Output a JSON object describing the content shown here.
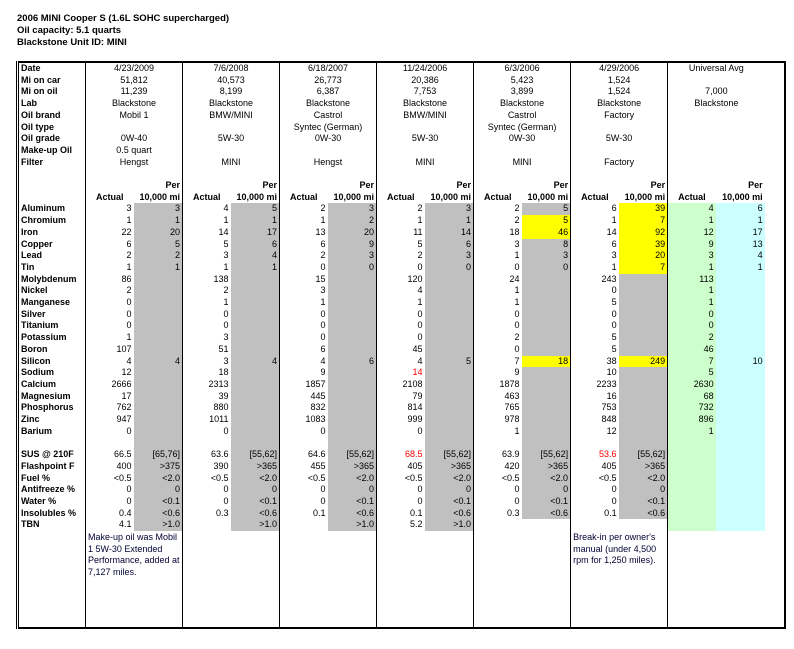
{
  "title": {
    "line1": "2006 MINI Cooper S (1.6L SOHC supercharged)",
    "line2": "Oil capacity:  5.1 quarts",
    "line3": "Blackstone Unit ID:  MINI"
  },
  "info_labels": [
    "Date",
    "Mi on car",
    "Mi on oil",
    "Lab",
    "Oil brand",
    "Oil type",
    "Oil grade",
    "Make-up Oil",
    "Filter"
  ],
  "header_labels": {
    "per": "Per",
    "actual": "Actual",
    "per_10k": "10,000 mi"
  },
  "element_labels": [
    "Aluminum",
    "Chromium",
    "Iron",
    "Copper",
    "Lead",
    "Tin",
    "Molybdenum",
    "Nickel",
    "Manganese",
    "Silver",
    "Titanium",
    "Potassium",
    "Boron",
    "Silicon",
    "Sodium",
    "Calcium",
    "Magnesium",
    "Phosphorus",
    "Zinc",
    "Barium"
  ],
  "property_labels": [
    "SUS @ 210F",
    "Flashpoint F",
    "Fuel %",
    "Antifreeze %",
    "Water %",
    "Insolubles %",
    "TBN"
  ],
  "colors": {
    "per_shade": "#c0c0c0",
    "over_limit": "#ffff00",
    "universal_actual": "#ccffcc",
    "universal_per": "#ccffff",
    "flag_text": "#ff0000"
  },
  "columns": [
    {
      "info": [
        "4/23/2009",
        "51,812",
        "11,239",
        "Blackstone",
        "Mobil 1",
        "",
        "0W-40",
        "0.5 quart",
        "Hengst"
      ],
      "actual": [
        "3",
        "1",
        "22",
        "6",
        "2",
        "1",
        "86",
        "2",
        "0",
        "0",
        "0",
        "1",
        "107",
        "4",
        "12",
        "2666",
        "17",
        "762",
        "947",
        "0"
      ],
      "per": [
        "3",
        "1",
        "20",
        "5",
        "2",
        "1",
        "",
        "",
        "",
        "",
        "",
        "",
        "",
        "4",
        "",
        "",
        "",
        "",
        "",
        ""
      ],
      "prop_actual": [
        "66.5",
        "400",
        "<0.5",
        "0",
        "0",
        "0.4",
        "4.1"
      ],
      "prop_limit": [
        "[65,76]",
        ">375",
        "<2.0",
        "0",
        "<0.1",
        "<0.6",
        ">1.0"
      ],
      "highlight_per": [],
      "flag_actual": [],
      "flag_prop": [],
      "note": "Make-up oil was Mobil 1 5W-30 Extended Performance, added at 7,127 miles."
    },
    {
      "info": [
        "7/6/2008",
        "40,573",
        "8,199",
        "Blackstone",
        "BMW/MINI",
        "",
        "5W-30",
        "",
        "MINI"
      ],
      "actual": [
        "4",
        "1",
        "14",
        "5",
        "3",
        "1",
        "138",
        "2",
        "1",
        "0",
        "0",
        "3",
        "51",
        "3",
        "18",
        "2313",
        "39",
        "880",
        "1011",
        "0"
      ],
      "per": [
        "5",
        "1",
        "17",
        "6",
        "4",
        "1",
        "",
        "",
        "",
        "",
        "",
        "",
        "",
        "4",
        "",
        "",
        "",
        "",
        "",
        ""
      ],
      "prop_actual": [
        "63.6",
        "390",
        "<0.5",
        "0",
        "0",
        "0.3",
        ""
      ],
      "prop_limit": [
        "[55,62]",
        ">365",
        "<2.0",
        "0",
        "<0.1",
        "<0.6",
        ">1.0"
      ],
      "highlight_per": [],
      "flag_actual": [],
      "flag_prop": [],
      "note": ""
    },
    {
      "info": [
        "6/18/2007",
        "26,773",
        "6,387",
        "Blackstone",
        "Castrol",
        "Syntec (German)",
        "0W-30",
        "",
        "Hengst"
      ],
      "actual": [
        "2",
        "1",
        "13",
        "6",
        "2",
        "0",
        "15",
        "3",
        "1",
        "0",
        "0",
        "0",
        "6",
        "4",
        "9",
        "1857",
        "445",
        "832",
        "1083",
        "0"
      ],
      "per": [
        "3",
        "2",
        "20",
        "9",
        "3",
        "0",
        "",
        "",
        "",
        "",
        "",
        "",
        "",
        "6",
        "",
        "",
        "",
        "",
        "",
        ""
      ],
      "prop_actual": [
        "64.6",
        "455",
        "<0.5",
        "0",
        "0",
        "0.1",
        ""
      ],
      "prop_limit": [
        "[55,62]",
        ">365",
        "<2.0",
        "0",
        "<0.1",
        "<0.6",
        ">1.0"
      ],
      "highlight_per": [],
      "flag_actual": [],
      "flag_prop": [],
      "note": ""
    },
    {
      "info": [
        "11/24/2006",
        "20,386",
        "7,753",
        "Blackstone",
        "BMW/MINI",
        "",
        "5W-30",
        "",
        "MINI"
      ],
      "actual": [
        "2",
        "1",
        "11",
        "5",
        "2",
        "0",
        "120",
        "4",
        "1",
        "0",
        "0",
        "0",
        "45",
        "4",
        "14",
        "2108",
        "79",
        "814",
        "999",
        "0"
      ],
      "per": [
        "3",
        "1",
        "14",
        "6",
        "3",
        "0",
        "",
        "",
        "",
        "",
        "",
        "",
        "",
        "5",
        "",
        "",
        "",
        "",
        "",
        ""
      ],
      "prop_actual": [
        "68.5",
        "405",
        "<0.5",
        "0",
        "0",
        "0.1",
        "5.2"
      ],
      "prop_limit": [
        "[55,62]",
        ">365",
        "<2.0",
        "0",
        "<0.1",
        "<0.6",
        ">1.0"
      ],
      "highlight_per": [],
      "flag_actual": [
        "Sodium"
      ],
      "flag_prop": [
        "SUS @ 210F"
      ],
      "note": ""
    },
    {
      "info": [
        "6/3/2006",
        "5,423",
        "3,899",
        "Blackstone",
        "Castrol",
        "Syntec (German)",
        "0W-30",
        "",
        "MINI"
      ],
      "actual": [
        "2",
        "2",
        "18",
        "3",
        "1",
        "0",
        "24",
        "1",
        "1",
        "0",
        "0",
        "2",
        "0",
        "7",
        "9",
        "1878",
        "463",
        "765",
        "978",
        "1"
      ],
      "per": [
        "5",
        "5",
        "46",
        "8",
        "3",
        "0",
        "",
        "",
        "",
        "",
        "",
        "",
        "",
        "18",
        "",
        "",
        "",
        "",
        "",
        ""
      ],
      "prop_actual": [
        "63.9",
        "420",
        "<0.5",
        "0",
        "0",
        "0.3",
        ""
      ],
      "prop_limit": [
        "[55,62]",
        ">365",
        "<2.0",
        "0",
        "<0.1",
        "<0.6",
        ""
      ],
      "highlight_per": [
        "Chromium",
        "Iron",
        "Silicon"
      ],
      "flag_actual": [],
      "flag_prop": [],
      "note": ""
    },
    {
      "info": [
        "4/29/2006",
        "1,524",
        "1,524",
        "Blackstone",
        "Factory",
        "",
        "5W-30",
        "",
        "Factory"
      ],
      "actual": [
        "6",
        "1",
        "14",
        "6",
        "3",
        "1",
        "243",
        "0",
        "5",
        "0",
        "0",
        "5",
        "5",
        "38",
        "10",
        "2233",
        "16",
        "753",
        "848",
        "12"
      ],
      "per": [
        "39",
        "7",
        "92",
        "39",
        "20",
        "7",
        "",
        "",
        "",
        "",
        "",
        "",
        "",
        "249",
        "",
        "",
        "",
        "",
        "",
        ""
      ],
      "prop_actual": [
        "53.6",
        "405",
        "<0.5",
        "0",
        "0",
        "0.1",
        ""
      ],
      "prop_limit": [
        "[55,62]",
        ">365",
        "<2.0",
        "0",
        "<0.1",
        "<0.6",
        ""
      ],
      "highlight_per": [
        "Aluminum",
        "Chromium",
        "Iron",
        "Copper",
        "Lead",
        "Tin",
        "Silicon"
      ],
      "flag_actual": [],
      "flag_prop": [
        "SUS @ 210F"
      ],
      "note": "Break-in per owner's manual (under 4,500 rpm for 1,250 miles)."
    },
    {
      "universal": true,
      "info": [
        "Universal Avg",
        "",
        "7,000",
        "Blackstone",
        "",
        "",
        "",
        "",
        ""
      ],
      "actual": [
        "4",
        "1",
        "12",
        "9",
        "3",
        "1",
        "113",
        "1",
        "1",
        "0",
        "0",
        "2",
        "46",
        "7",
        "5",
        "2630",
        "68",
        "732",
        "896",
        "1"
      ],
      "per": [
        "6",
        "1",
        "17",
        "13",
        "4",
        "1",
        "",
        "",
        "",
        "",
        "",
        "",
        "",
        "10",
        "",
        "",
        "",
        "",
        "",
        ""
      ],
      "prop_actual": [
        "",
        "",
        "",
        "",
        "",
        "",
        ""
      ],
      "prop_limit": [
        "",
        "",
        "",
        "",
        "",
        "",
        ""
      ],
      "highlight_per": [],
      "flag_actual": [],
      "flag_prop": [],
      "note": ""
    }
  ]
}
